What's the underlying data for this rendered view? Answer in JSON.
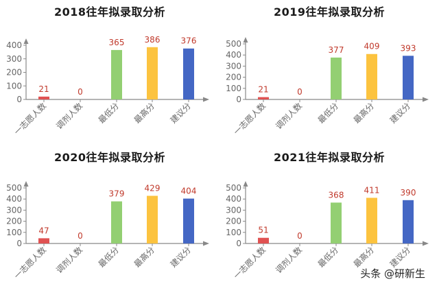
{
  "chart_data": [
    {
      "type": "bar",
      "title": "2018往年拟录取分析",
      "categories": [
        "一志愿人数",
        "调剂人数",
        "最低分",
        "最高分",
        "建议分"
      ],
      "values": [
        21,
        0,
        365,
        386,
        376
      ],
      "bar_colors": [
        "#e05252",
        "#e05252",
        "#93cf72",
        "#fcc33f",
        "#4467c4"
      ],
      "yticks": [
        0,
        100,
        200,
        300,
        400
      ],
      "ylim": [
        0,
        400
      ],
      "xlabel": "",
      "ylabel": "",
      "grid": false,
      "legend": false,
      "data_label_color": "#c0392b"
    },
    {
      "type": "bar",
      "title": "2019往年拟录取分析",
      "categories": [
        "一志愿人数",
        "调剂人数",
        "最低分",
        "最高分",
        "建议分"
      ],
      "values": [
        21,
        0,
        377,
        409,
        393
      ],
      "bar_colors": [
        "#e05252",
        "#e05252",
        "#93cf72",
        "#fcc33f",
        "#4467c4"
      ],
      "yticks": [
        0,
        100,
        200,
        300,
        400,
        500
      ],
      "ylim": [
        0,
        500
      ],
      "xlabel": "",
      "ylabel": "",
      "grid": false,
      "legend": false,
      "data_label_color": "#c0392b"
    },
    {
      "type": "bar",
      "title": "2020往年拟录取分析",
      "categories": [
        "一志愿人数",
        "调剂人数",
        "最低分",
        "最高分",
        "建议分"
      ],
      "values": [
        47,
        0,
        379,
        429,
        404
      ],
      "bar_colors": [
        "#e05252",
        "#e05252",
        "#93cf72",
        "#fcc33f",
        "#4467c4"
      ],
      "yticks": [
        0,
        100,
        200,
        300,
        400,
        500
      ],
      "ylim": [
        0,
        500
      ],
      "xlabel": "",
      "ylabel": "",
      "grid": false,
      "legend": false,
      "data_label_color": "#c0392b"
    },
    {
      "type": "bar",
      "title": "2021往年拟录取分析",
      "categories": [
        "一志愿人数",
        "调剂人数",
        "最低分",
        "最高分",
        "建议分"
      ],
      "values": [
        51,
        0,
        368,
        411,
        390
      ],
      "bar_colors": [
        "#e05252",
        "#e05252",
        "#93cf72",
        "#fcc33f",
        "#4467c4"
      ],
      "yticks": [
        0,
        100,
        200,
        300,
        400,
        500
      ],
      "ylim": [
        0,
        500
      ],
      "xlabel": "",
      "ylabel": "",
      "grid": false,
      "legend": false,
      "data_label_color": "#c0392b"
    }
  ],
  "watermark": "头条 @研新生"
}
